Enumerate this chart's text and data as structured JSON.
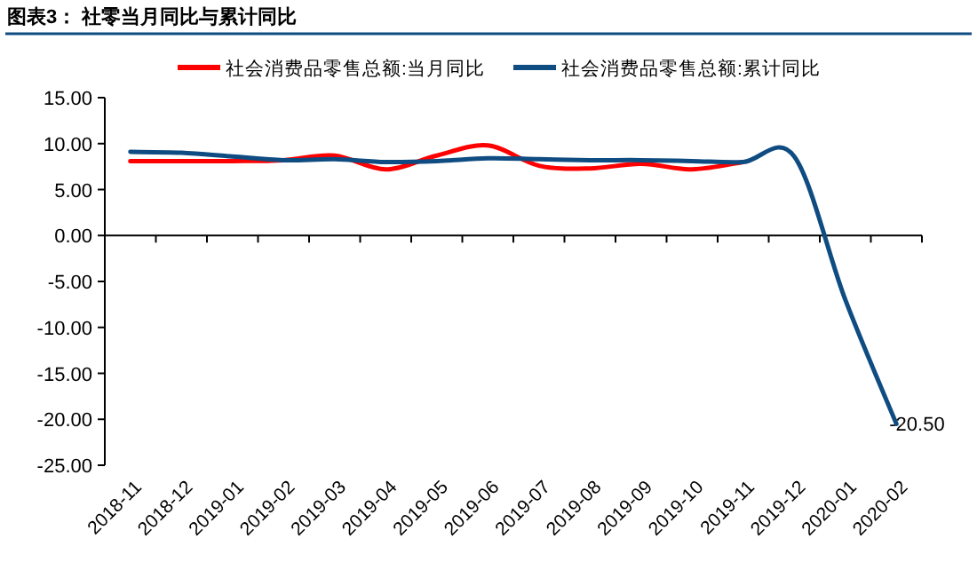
{
  "chart_data": {
    "type": "line",
    "title": "图表3：  社零当月同比与累计同比",
    "categories": [
      "2018-11",
      "2018-12",
      "2019-01",
      "2019-02",
      "2019-03",
      "2019-04",
      "2019-05",
      "2019-06",
      "2019-07",
      "2019-08",
      "2019-09",
      "2019-10",
      "2019-11",
      "2019-12",
      "2020-01",
      "2020-02"
    ],
    "series": [
      {
        "name": "社会消费品零售总额:当月同比",
        "color": "#ff0000",
        "values": [
          8.1,
          8.1,
          8.1,
          8.2,
          8.7,
          7.2,
          8.7,
          9.8,
          7.6,
          7.3,
          7.8,
          7.2,
          8.0,
          null,
          null,
          null
        ]
      },
      {
        "name": "社会消费品零售总额:累计同比",
        "color": "#0f4c81",
        "values": [
          9.1,
          9.0,
          8.6,
          8.2,
          8.3,
          8.0,
          8.1,
          8.4,
          8.3,
          8.2,
          8.2,
          8.1,
          8.0,
          8.6,
          -7.0,
          -20.5
        ],
        "value_labels": [
          null,
          null,
          null,
          null,
          null,
          null,
          null,
          null,
          null,
          null,
          null,
          null,
          null,
          null,
          null,
          "-20.50"
        ]
      }
    ],
    "ylim": [
      -25,
      15
    ],
    "yticks": [
      {
        "value": -25,
        "label": "-25.00"
      },
      {
        "value": -20,
        "label": "-20.00"
      },
      {
        "value": -15,
        "label": "-15.00"
      },
      {
        "value": -10,
        "label": "-10.00"
      },
      {
        "value": -5,
        "label": "-5.00"
      },
      {
        "value": 0,
        "label": "0.00"
      },
      {
        "value": 5,
        "label": "5.00"
      },
      {
        "value": 10,
        "label": "10.00"
      },
      {
        "value": 15,
        "label": "15.00"
      }
    ],
    "legend": "top"
  }
}
